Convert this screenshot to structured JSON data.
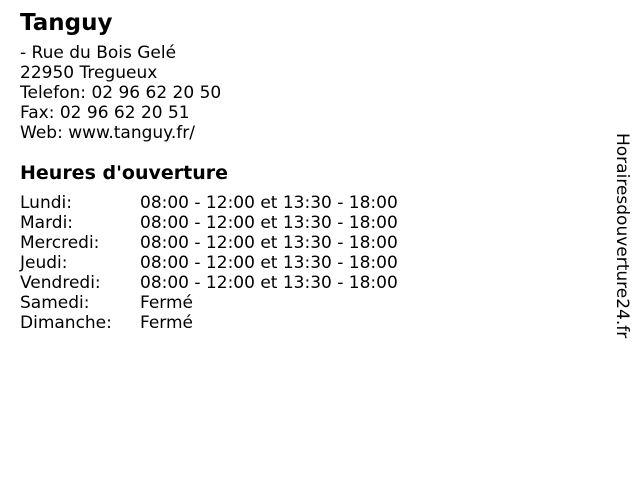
{
  "business": {
    "name": "Tanguy",
    "street": "- Rue du Bois Gelé",
    "city": "22950 Tregueux",
    "phone_label": "Telefon:",
    "phone": "02 96 62 20 50",
    "fax_label": "Fax:",
    "fax": "02 96 62 20 51",
    "web_label": "Web:",
    "web": "www.tanguy.fr/"
  },
  "hours": {
    "title": "Heures d'ouverture",
    "rows": [
      {
        "day": "Lundi:",
        "times": "08:00 - 12:00 et 13:30 - 18:00"
      },
      {
        "day": "Mardi:",
        "times": "08:00 - 12:00 et 13:30 - 18:00"
      },
      {
        "day": "Mercredi:",
        "times": "08:00 - 12:00 et 13:30 - 18:00"
      },
      {
        "day": "Jeudi:",
        "times": "08:00 - 12:00 et 13:30 - 18:00"
      },
      {
        "day": "Vendredi:",
        "times": "08:00 - 12:00 et 13:30 - 18:00"
      },
      {
        "day": "Samedi:",
        "times": "Fermé"
      },
      {
        "day": "Dimanche:",
        "times": "Fermé"
      }
    ]
  },
  "watermark": "Horairesdouverture24.fr",
  "colors": {
    "background": "#ffffff",
    "text": "#000000"
  }
}
